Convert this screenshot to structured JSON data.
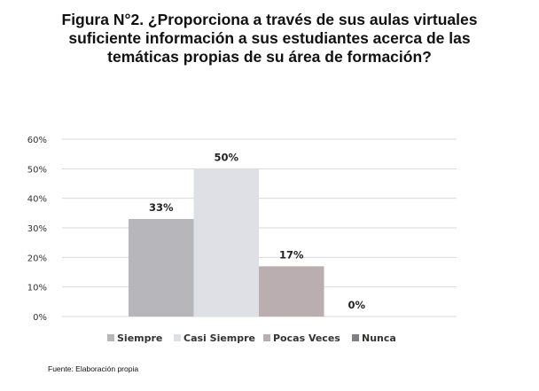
{
  "title_lines": [
    "Figura N°2. ¿Proporciona a través de sus aulas virtuales",
    "suficiente información a sus estudiantes acerca de las",
    "temáticas propias de su área de formación?"
  ],
  "source": "Fuente: Elaboración propia",
  "chart_data": {
    "type": "bar",
    "title": "Figura N°2. ¿Proporciona a través de sus aulas virtuales suficiente información a sus estudiantes acerca de las temáticas propias de su área de formación?",
    "categories": [
      "Siempre",
      "Casi Siempre",
      "Pocas Veces",
      "Nunca"
    ],
    "values": [
      33,
      50,
      17,
      0
    ],
    "data_labels": [
      "33%",
      "50%",
      "17%",
      "0%"
    ],
    "colors": [
      "#b6b6bb",
      "#dfe0e6",
      "#bbaeb0",
      "#7f8087"
    ],
    "yticks": [
      "0%",
      "10%",
      "20%",
      "30%",
      "40%",
      "50%",
      "60%"
    ],
    "ylim": [
      0,
      60
    ],
    "grid": true,
    "legend": "bottom",
    "xlabel": "",
    "ylabel": ""
  }
}
